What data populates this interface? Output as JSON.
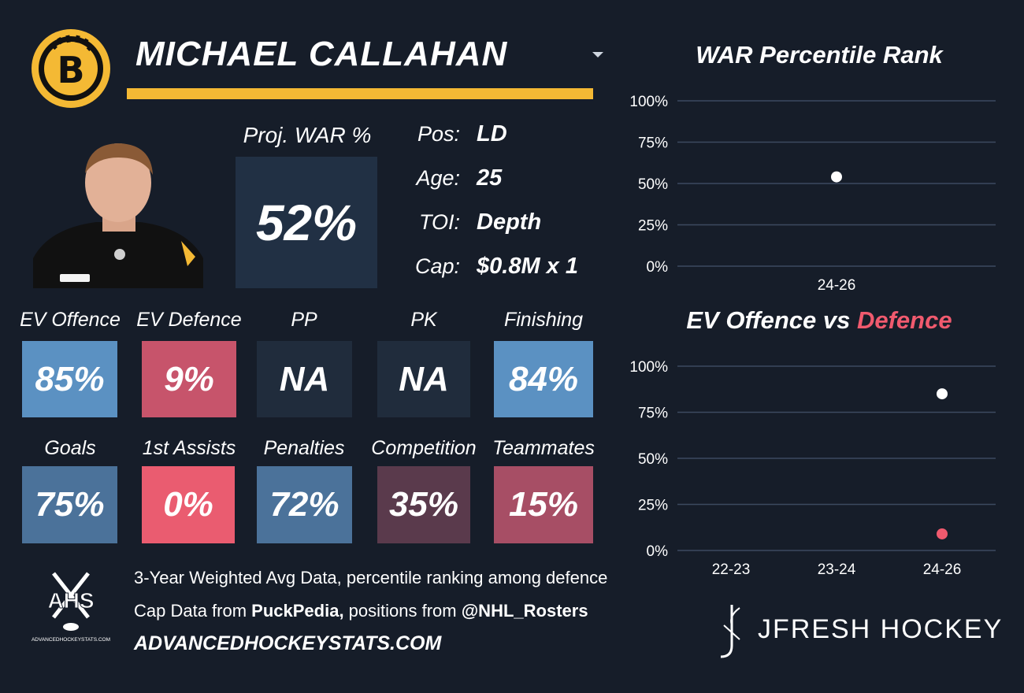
{
  "header": {
    "player_name": "MICHAEL CALLAHAN",
    "team_logo_letter": "B",
    "accent_color": "#f4b934",
    "logo_colors": {
      "gold": "#f4b934",
      "black": "#111111"
    }
  },
  "projection": {
    "label": "Proj. WAR %",
    "value": "52%"
  },
  "info": {
    "pos_key": "Pos:",
    "pos_val": "LD",
    "age_key": "Age:",
    "age_val": "25",
    "toi_key": "TOI:",
    "toi_val": "Depth",
    "cap_key": "Cap:",
    "cap_val": "$0.8M x 1"
  },
  "stats_row1": [
    {
      "label": "EV Offence",
      "value": "85%",
      "color": "#5b91c2"
    },
    {
      "label": "EV Defence",
      "value": "9%",
      "color": "#c7546b"
    },
    {
      "label": "PP",
      "value": "NA",
      "color": "#202c3c"
    },
    {
      "label": "PK",
      "value": "NA",
      "color": "#202c3c"
    },
    {
      "label": "Finishing",
      "value": "84%",
      "color": "#5b91c2"
    }
  ],
  "stats_row2": [
    {
      "label": "Goals",
      "value": "75%",
      "color": "#4b729a"
    },
    {
      "label": "1st Assists",
      "value": "0%",
      "color": "#ea5c70"
    },
    {
      "label": "Penalties",
      "value": "72%",
      "color": "#4b729a"
    },
    {
      "label": "Competition",
      "value": "35%",
      "color": "#5a3a4c"
    },
    {
      "label": "Teammates",
      "value": "15%",
      "color": "#a74e65"
    }
  ],
  "chart_data": [
    {
      "type": "scatter",
      "title": "WAR Percentile Rank",
      "categories": [
        "24-26"
      ],
      "series": [
        {
          "values": [
            54
          ],
          "color": "#ffffff"
        }
      ],
      "ylim": [
        0,
        100
      ],
      "yticks": [
        "100%",
        "75%",
        "50%",
        "25%",
        "0%"
      ],
      "grid": true
    },
    {
      "type": "scatter",
      "title_part1": "EV Offence vs ",
      "title_part2": "Defence",
      "title_part2_color": "#f05a6e",
      "categories": [
        "22-23",
        "23-24",
        "24-26"
      ],
      "series": [
        {
          "values": [
            null,
            null,
            85
          ],
          "color": "#ffffff"
        },
        {
          "values": [
            null,
            null,
            9
          ],
          "color": "#f05a6e"
        }
      ],
      "ylim": [
        0,
        100
      ],
      "yticks": [
        "100%",
        "75%",
        "50%",
        "25%",
        "0%"
      ],
      "grid": true
    }
  ],
  "footer": {
    "ahs_logo_text": "AHS",
    "ahs_logo_sub": "ADVANCEDHOCKEYSTATS.COM",
    "line1": "3-Year Weighted Avg Data, percentile ranking among defence",
    "line2_prefix": "Cap Data from ",
    "line2_bold1": "PuckPedia,",
    "line2_mid": " positions from ",
    "line2_bold2": "@NHL_Rosters",
    "url": "ADVANCEDHOCKEYSTATS.COM",
    "brand": "JFRESH HOCKEY"
  }
}
